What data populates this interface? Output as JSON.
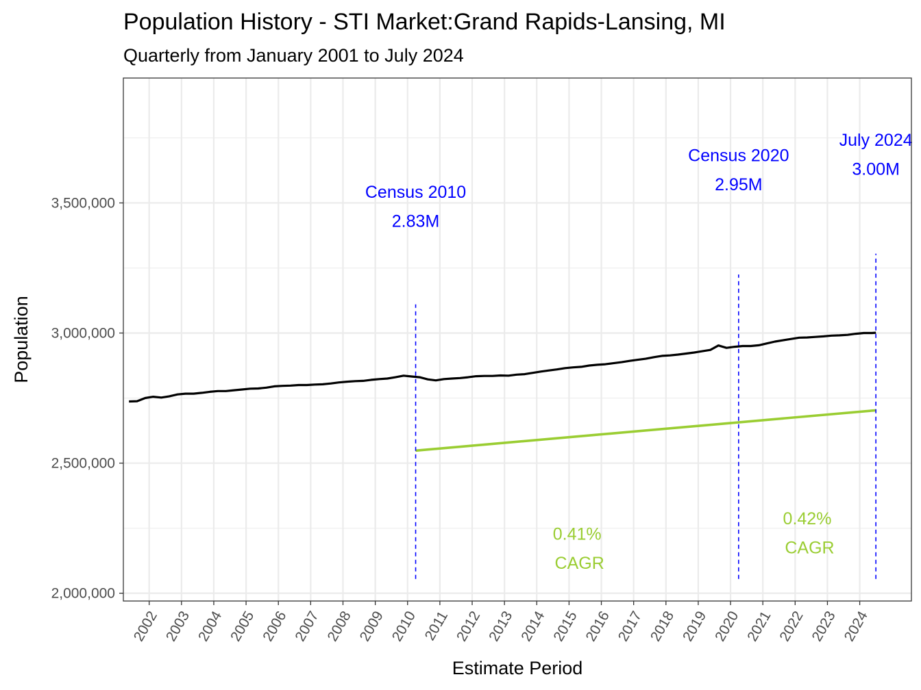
{
  "chart_data": {
    "type": "line",
    "title": "Population History - STI Market:Grand Rapids-Lansing, MI",
    "subtitle": "Quarterly from January 2001 to July 2024",
    "xlabel": "Estimate Period",
    "ylabel": "Population",
    "xlim": [
      2001.2,
      2025.6
    ],
    "ylim": [
      1970000,
      3980000
    ],
    "yticks": [
      2000000,
      2500000,
      3000000,
      3500000
    ],
    "ytick_labels": [
      "2,000,000",
      "2,500,000",
      "3,000,000",
      "3,500,000"
    ],
    "xticks": [
      2002,
      2003,
      2004,
      2005,
      2006,
      2007,
      2008,
      2009,
      2010,
      2011,
      2012,
      2013,
      2014,
      2015,
      2016,
      2017,
      2018,
      2019,
      2020,
      2021,
      2022,
      2023,
      2024
    ],
    "xtick_labels": [
      "2002",
      "2003",
      "2004",
      "2005",
      "2006",
      "2007",
      "2008",
      "2009",
      "2010",
      "2011",
      "2012",
      "2013",
      "2014",
      "2015",
      "2016",
      "2017",
      "2018",
      "2019",
      "2020",
      "2021",
      "2022",
      "2023",
      "2024"
    ],
    "grid": true,
    "series": [
      {
        "color": "#000000",
        "x": [
          2001.375,
          2001.625,
          2001.875,
          2002.125,
          2002.375,
          2002.625,
          2002.875,
          2003.125,
          2003.375,
          2003.625,
          2003.875,
          2004.125,
          2004.375,
          2004.625,
          2004.875,
          2005.125,
          2005.375,
          2005.625,
          2005.875,
          2006.125,
          2006.375,
          2006.625,
          2006.875,
          2007.125,
          2007.375,
          2007.625,
          2007.875,
          2008.125,
          2008.375,
          2008.625,
          2008.875,
          2009.125,
          2009.375,
          2009.625,
          2009.875,
          2010.125,
          2010.375,
          2010.625,
          2010.875,
          2011.125,
          2011.375,
          2011.625,
          2011.875,
          2012.125,
          2012.375,
          2012.625,
          2012.875,
          2013.125,
          2013.375,
          2013.625,
          2013.875,
          2014.125,
          2014.375,
          2014.625,
          2014.875,
          2015.125,
          2015.375,
          2015.625,
          2015.875,
          2016.125,
          2016.375,
          2016.625,
          2016.875,
          2017.125,
          2017.375,
          2017.625,
          2017.875,
          2018.125,
          2018.375,
          2018.625,
          2018.875,
          2019.125,
          2019.375,
          2019.625,
          2019.875,
          2020.125,
          2020.375,
          2020.625,
          2020.875,
          2021.125,
          2021.375,
          2021.625,
          2021.875,
          2022.125,
          2022.375,
          2022.625,
          2022.875,
          2023.125,
          2023.375,
          2023.625,
          2023.875,
          2024.125,
          2024.375,
          2024.5
        ],
        "values": [
          2737000,
          2738000,
          2750000,
          2755000,
          2752000,
          2757000,
          2764000,
          2767000,
          2767000,
          2770000,
          2774000,
          2777000,
          2777000,
          2780000,
          2783000,
          2786000,
          2787000,
          2790000,
          2795000,
          2797000,
          2798000,
          2800000,
          2800000,
          2802000,
          2803000,
          2806000,
          2810000,
          2813000,
          2815000,
          2816000,
          2820000,
          2823000,
          2825000,
          2830000,
          2836000,
          2833000,
          2830000,
          2822000,
          2818000,
          2823000,
          2825000,
          2827000,
          2830000,
          2834000,
          2835000,
          2835000,
          2837000,
          2836000,
          2840000,
          2842000,
          2847000,
          2852000,
          2856000,
          2860000,
          2865000,
          2868000,
          2870000,
          2875000,
          2878000,
          2880000,
          2884000,
          2888000,
          2893000,
          2897000,
          2901000,
          2907000,
          2912000,
          2914000,
          2917000,
          2921000,
          2925000,
          2930000,
          2935000,
          2952000,
          2943000,
          2947000,
          2950000,
          2950000,
          2953000,
          2960000,
          2967000,
          2972000,
          2977000,
          2982000,
          2983000,
          2985000,
          2987000,
          2990000,
          2991000,
          2993000,
          2997000,
          3000000,
          3000000,
          3001000
        ]
      },
      {
        "color": "#9acd32",
        "x": [
          2010.25,
          2024.5
        ],
        "values": [
          2548000,
          2703000
        ]
      }
    ],
    "vlines": [
      {
        "x": 2010.25,
        "y_from": 2055000,
        "y_to": 3110000,
        "color": "#0000ff"
      },
      {
        "x": 2020.25,
        "y_from": 2055000,
        "y_to": 3225000,
        "color": "#0000ff"
      },
      {
        "x": 2024.5,
        "y_from": 2055000,
        "y_to": 3305000,
        "color": "#0000ff"
      }
    ],
    "annotations": [
      {
        "lines": [
          "Census 2010",
          "2.83M"
        ],
        "x": 2010.25,
        "y": 3520000,
        "color": "#0000ff"
      },
      {
        "lines": [
          "Census 2020",
          "2.95M"
        ],
        "x": 2020.25,
        "y": 3660000,
        "color": "#0000ff"
      },
      {
        "lines": [
          "July 2024",
          "3.00M"
        ],
        "x": 2024.5,
        "y": 3720000,
        "color": "#0000ff"
      },
      {
        "lines": [
          "0.41%",
          " CAGR"
        ],
        "x": 2015.25,
        "y": 2205000,
        "color": "#9acd32"
      },
      {
        "lines": [
          "0.42%",
          " CAGR"
        ],
        "x": 2022.375,
        "y": 2265000,
        "color": "#9acd32"
      }
    ]
  }
}
